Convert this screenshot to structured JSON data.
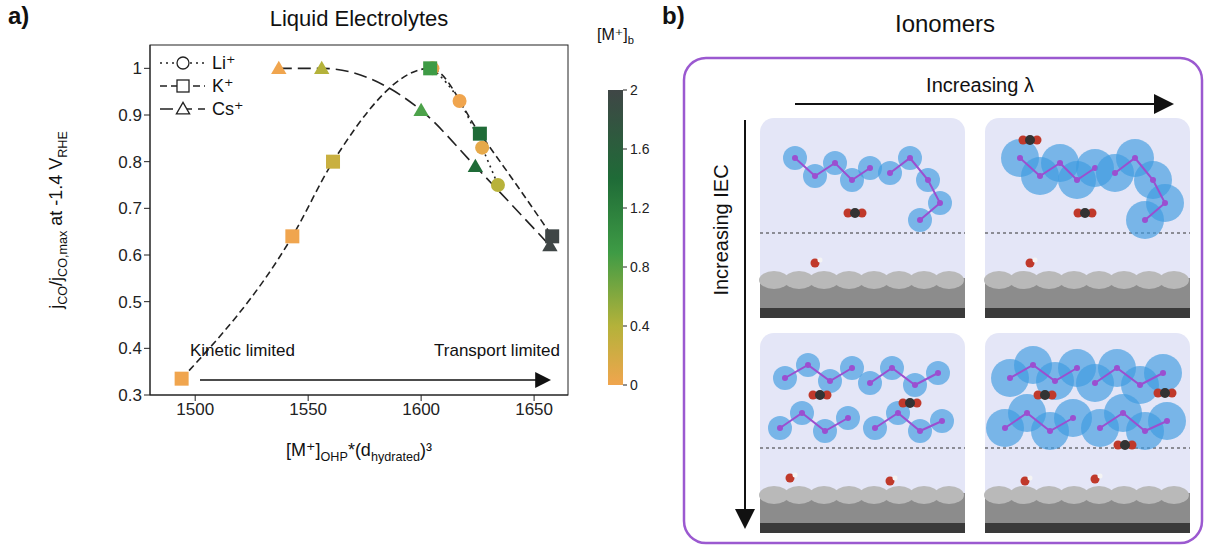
{
  "chart_data": {
    "type": "scatter",
    "label": "a)",
    "title": "Liquid Electrolytes",
    "x_label": [
      "[M⁺]",
      "OHP",
      "*(d",
      "hydrated",
      ")³"
    ],
    "y_label": [
      "j",
      "CO",
      "/j",
      "CO,max",
      " at -1.4 V",
      "RHE"
    ],
    "xlim": [
      1480,
      1665
    ],
    "xticks": [
      1500,
      1550,
      1600,
      1650
    ],
    "ylim": [
      0.3,
      1.05
    ],
    "yticks": [
      0.3,
      0.4,
      0.5,
      0.6,
      0.7,
      0.8,
      0.9,
      1
    ],
    "grid": false,
    "legend": "upper left",
    "series": [
      {
        "name": "Li⁺",
        "marker": "circle",
        "line_style": "dotted",
        "x": [
          1605,
          1617,
          1627,
          1634
        ],
        "values": [
          1.0,
          0.93,
          0.83,
          0.75
        ],
        "colors": [
          "#f0a54e",
          "#f0a54e",
          "#e6a94a",
          "#b8b23a"
        ]
      },
      {
        "name": "K⁺",
        "marker": "square",
        "line_style": "dashed",
        "x": [
          1494,
          1543,
          1561,
          1604,
          1626,
          1658
        ],
        "values": [
          0.335,
          0.64,
          0.8,
          1.0,
          0.86,
          0.64
        ],
        "colors": [
          "#f0a54e",
          "#f0a54e",
          "#c9b040",
          "#3e9b45",
          "#1f6b37",
          "#3f4646"
        ]
      },
      {
        "name": "Cs⁺",
        "marker": "triangle",
        "line_style": "longdash",
        "x": [
          1537,
          1556,
          1600,
          1624,
          1657
        ],
        "values": [
          1.0,
          1.0,
          0.91,
          0.79,
          0.62
        ],
        "colors": [
          "#f0a54e",
          "#b4b23a",
          "#4ca24a",
          "#1f6b37",
          "#3f4646"
        ]
      }
    ],
    "annotations": [
      "Kinetic limited",
      "Transport limited"
    ],
    "colorbar": {
      "label": [
        "[M⁺]",
        "b"
      ],
      "range": [
        0,
        2
      ],
      "ticks": [
        0,
        0.4,
        0.8,
        1.2,
        1.6,
        2
      ]
    }
  },
  "diagram": {
    "label": "b)",
    "title": "Ionomers",
    "x_arrow": "Increasing λ",
    "y_arrow": "Increasing IEC"
  }
}
